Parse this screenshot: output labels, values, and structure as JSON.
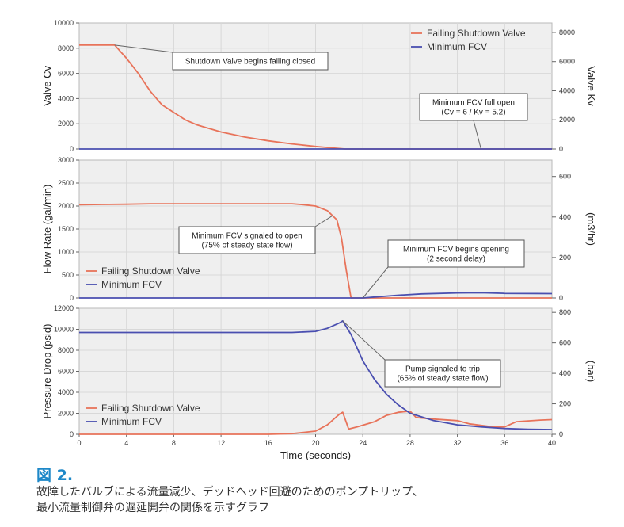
{
  "figure": {
    "label": "図 2.",
    "caption_lines": [
      "故障したバルブによる流量減少、デッドヘッド回避のためのポンプトリップ、",
      "最小流量制御弁の遅延開弁の関係を示すグラフ"
    ]
  },
  "colors": {
    "failing_shutdown_valve": "#e8735a",
    "minimum_fcv": "#4a4fb0",
    "plot_background": "#efefef"
  },
  "chart_data": [
    {
      "type": "line",
      "ylabel": "Valve Cv",
      "y2label": "Valve Kv",
      "xlim": [
        0,
        40
      ],
      "ylim": [
        0,
        10000
      ],
      "y2lim": [
        0,
        8650
      ],
      "yticks": [
        0,
        2000,
        4000,
        6000,
        8000,
        10000
      ],
      "y2ticks": [
        0,
        2000,
        4000,
        6000,
        8000
      ],
      "grid": true,
      "legend": {
        "position": "top-right",
        "entries": [
          "Failing Shutdown Valve",
          "Minimum FCV"
        ]
      },
      "series": [
        {
          "name": "Failing Shutdown Valve",
          "color": "#e8735a",
          "points": [
            [
              0,
              8250
            ],
            [
              3,
              8250
            ],
            [
              4,
              7200
            ],
            [
              5,
              6000
            ],
            [
              6,
              4600
            ],
            [
              7,
              3500
            ],
            [
              8,
              2900
            ],
            [
              9,
              2300
            ],
            [
              10,
              1900
            ],
            [
              12,
              1350
            ],
            [
              14,
              950
            ],
            [
              16,
              650
            ],
            [
              18,
              400
            ],
            [
              20,
              200
            ],
            [
              21,
              120
            ],
            [
              22,
              40
            ],
            [
              22.5,
              0
            ],
            [
              40,
              0
            ]
          ]
        },
        {
          "name": "Minimum FCV",
          "color": "#4a4fb0",
          "points": [
            [
              0,
              0
            ],
            [
              40,
              0
            ]
          ]
        }
      ],
      "annotations": [
        {
          "lines": [
            "Shutdown Valve begins failing closed"
          ],
          "point": [
            3,
            8250
          ]
        },
        {
          "lines": [
            "Minimum FCV full open",
            "(Cv = 6 / Kv = 5.2)"
          ],
          "point": [
            34,
            0
          ]
        }
      ]
    },
    {
      "type": "line",
      "ylabel": "Flow Rate (gal/min)",
      "y2label": "(m3/hr)",
      "xlim": [
        0,
        40
      ],
      "ylim": [
        0,
        3000
      ],
      "y2lim": [
        0,
        681
      ],
      "yticks": [
        0,
        500,
        1000,
        1500,
        2000,
        2500,
        3000
      ],
      "y2ticks": [
        0,
        200,
        400,
        600
      ],
      "grid": true,
      "legend": {
        "position": "bottom-left",
        "entries": [
          "Failing Shutdown Valve",
          "Minimum FCV"
        ]
      },
      "series": [
        {
          "name": "Failing Shutdown Valve",
          "color": "#e8735a",
          "points": [
            [
              0,
              2030
            ],
            [
              4,
              2040
            ],
            [
              6,
              2050
            ],
            [
              18,
              2050
            ],
            [
              19,
              2030
            ],
            [
              20,
              2000
            ],
            [
              21,
              1900
            ],
            [
              21.8,
              1700
            ],
            [
              22.2,
              1300
            ],
            [
              22.6,
              600
            ],
            [
              23,
              0
            ],
            [
              40,
              0
            ]
          ]
        },
        {
          "name": "Minimum FCV",
          "color": "#4a4fb0",
          "points": [
            [
              0,
              0
            ],
            [
              24,
              0
            ],
            [
              25,
              20
            ],
            [
              27,
              60
            ],
            [
              29,
              90
            ],
            [
              32,
              110
            ],
            [
              34,
              115
            ],
            [
              36,
              100
            ],
            [
              40,
              95
            ]
          ]
        }
      ],
      "annotations": [
        {
          "lines": [
            "Minimum FCV signaled to open",
            "(75% of steady state flow)"
          ],
          "point": [
            21.5,
            1800
          ]
        },
        {
          "lines": [
            "Minimum FCV begins opening",
            "(2 second delay)"
          ],
          "point": [
            24,
            0
          ]
        }
      ]
    },
    {
      "type": "line",
      "ylabel": "Pressure Drop (psid)",
      "y2label": "(bar)",
      "xlabel": "Time (seconds)",
      "xlim": [
        0,
        40
      ],
      "ylim": [
        0,
        12000
      ],
      "y2lim": [
        0,
        827
      ],
      "xticks": [
        0,
        4,
        8,
        12,
        16,
        20,
        24,
        28,
        32,
        36,
        40
      ],
      "yticks": [
        0,
        2000,
        4000,
        6000,
        8000,
        10000,
        12000
      ],
      "y2ticks": [
        0,
        200,
        400,
        600,
        800
      ],
      "grid": true,
      "legend": {
        "position": "bottom-left",
        "entries": [
          "Failing Shutdown Valve",
          "Minimum FCV"
        ]
      },
      "series": [
        {
          "name": "Failing Shutdown Valve",
          "color": "#e8735a",
          "points": [
            [
              0,
              0
            ],
            [
              16,
              0
            ],
            [
              18,
              60
            ],
            [
              20,
              300
            ],
            [
              21,
              900
            ],
            [
              22,
              1900
            ],
            [
              22.3,
              2100
            ],
            [
              22.8,
              500
            ],
            [
              23.5,
              700
            ],
            [
              25,
              1200
            ],
            [
              26,
              1800
            ],
            [
              27,
              2100
            ],
            [
              28,
              2200
            ],
            [
              28.5,
              1600
            ],
            [
              30,
              1450
            ],
            [
              32,
              1300
            ],
            [
              33,
              1000
            ],
            [
              35,
              700
            ],
            [
              36,
              700
            ],
            [
              37,
              1200
            ],
            [
              39,
              1350
            ],
            [
              40,
              1400
            ]
          ]
        },
        {
          "name": "Minimum FCV",
          "color": "#4a4fb0",
          "points": [
            [
              0,
              9700
            ],
            [
              18,
              9700
            ],
            [
              20,
              9800
            ],
            [
              21,
              10100
            ],
            [
              22,
              10600
            ],
            [
              22.3,
              10800
            ],
            [
              23,
              9500
            ],
            [
              24,
              7000
            ],
            [
              25,
              5200
            ],
            [
              26,
              3800
            ],
            [
              27,
              2800
            ],
            [
              28,
              2000
            ],
            [
              30,
              1300
            ],
            [
              32,
              900
            ],
            [
              34,
              700
            ],
            [
              36,
              550
            ],
            [
              38,
              480
            ],
            [
              40,
              450
            ]
          ]
        }
      ],
      "annotations": [
        {
          "lines": [
            "Pump signaled to trip",
            "(65% of steady state flow)"
          ],
          "point": [
            22.3,
            10800
          ]
        }
      ]
    }
  ]
}
